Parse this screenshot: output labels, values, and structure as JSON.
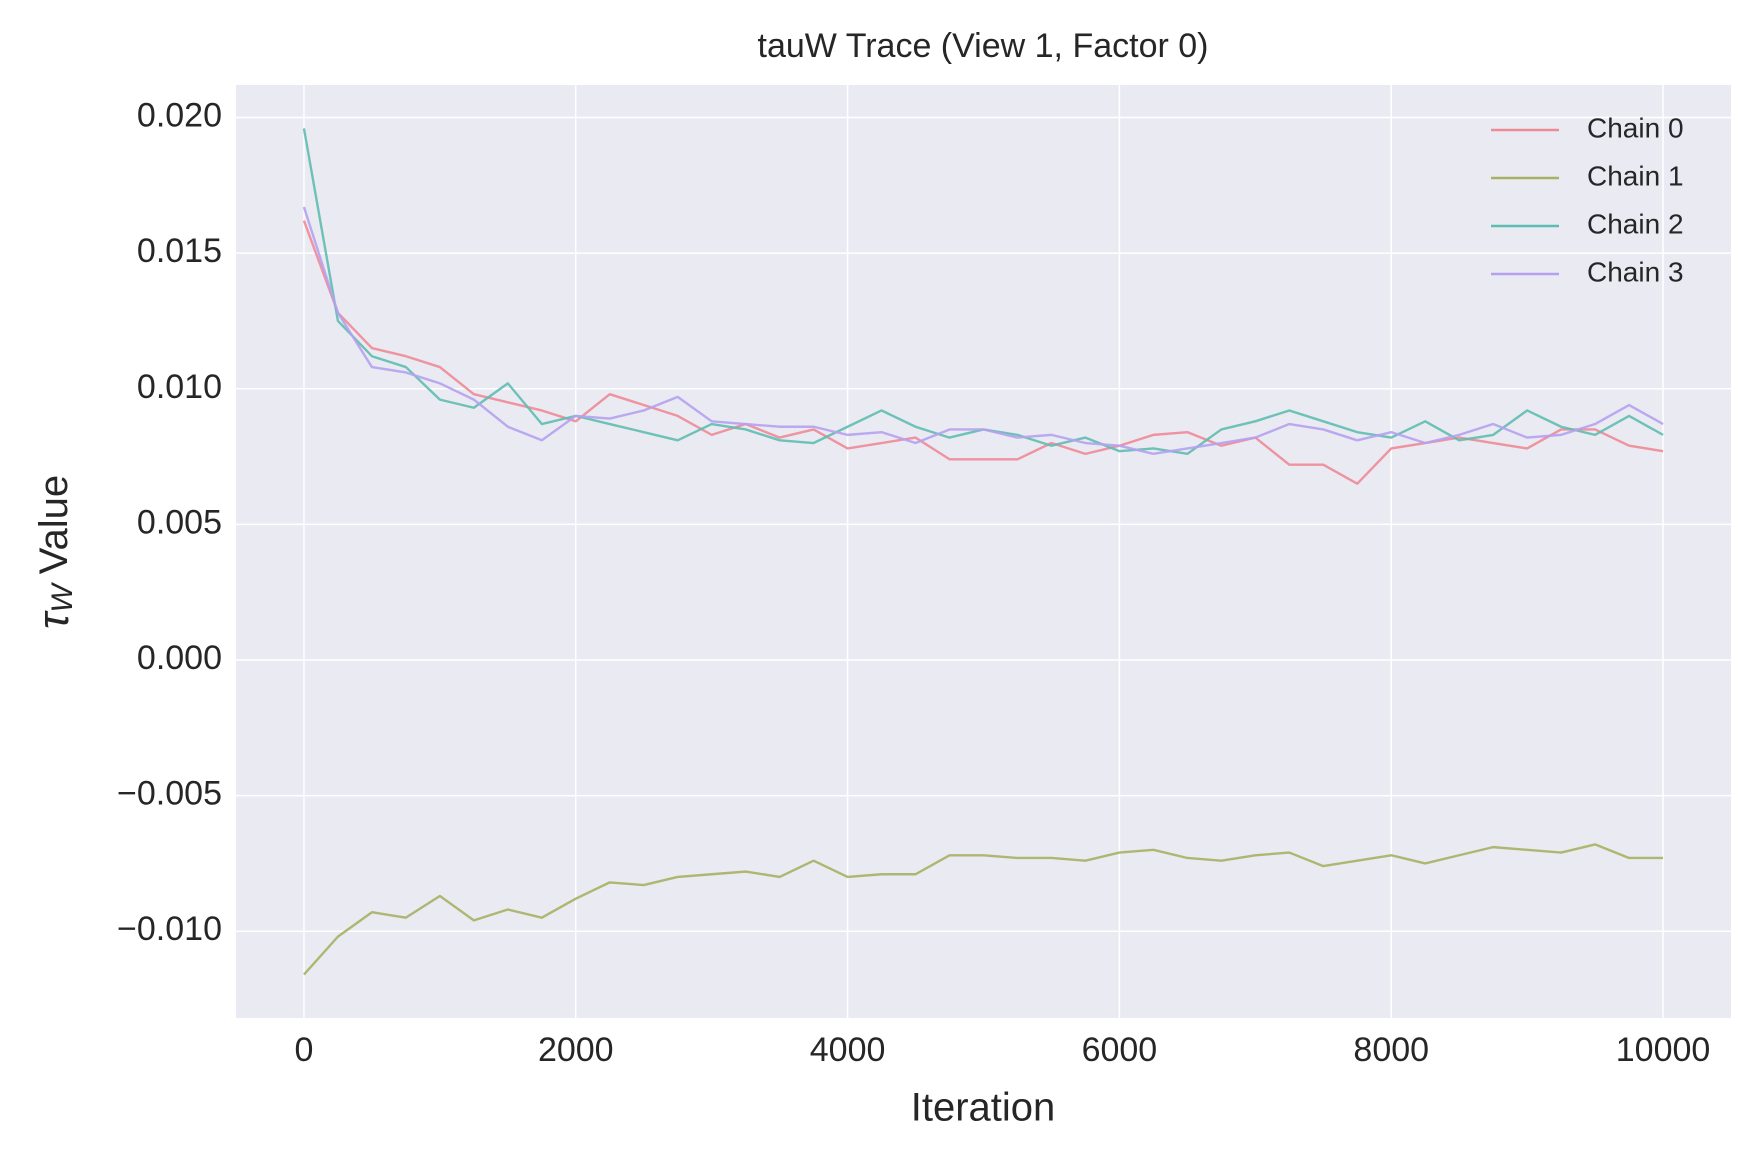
{
  "chart_data": {
    "type": "line",
    "title": "tauW Trace (View 1, Factor 0)",
    "xlabel": "Iteration",
    "ylabel": {
      "symbol": "τ",
      "subscript": "W",
      "text": "Value"
    },
    "x": [
      0,
      250,
      500,
      750,
      1000,
      1250,
      1500,
      1750,
      2000,
      2250,
      2500,
      2750,
      3000,
      3250,
      3500,
      3750,
      4000,
      4250,
      4500,
      4750,
      5000,
      5250,
      5500,
      5750,
      6000,
      6250,
      6500,
      6750,
      7000,
      7250,
      7500,
      7750,
      8000,
      8250,
      8500,
      8750,
      9000,
      9250,
      9500,
      9750,
      10000
    ],
    "series": [
      {
        "name": "Chain 0",
        "color": "#ee8a96",
        "values": [
          0.0162,
          0.0128,
          0.0115,
          0.0112,
          0.0108,
          0.0098,
          0.0095,
          0.0092,
          0.0088,
          0.0098,
          0.0094,
          0.009,
          0.0083,
          0.0087,
          0.0082,
          0.0085,
          0.0078,
          0.008,
          0.0082,
          0.0074,
          0.0074,
          0.0074,
          0.008,
          0.0076,
          0.0079,
          0.0083,
          0.0084,
          0.0079,
          0.0082,
          0.0072,
          0.0072,
          0.0065,
          0.0078,
          0.008,
          0.0082,
          0.008,
          0.0078,
          0.0085,
          0.0085,
          0.0079,
          0.0077
        ]
      },
      {
        "name": "Chain 1",
        "color": "#a8b063",
        "values": [
          -0.0116,
          -0.0102,
          -0.0093,
          -0.0095,
          -0.0087,
          -0.0096,
          -0.0092,
          -0.0095,
          -0.0088,
          -0.0082,
          -0.0083,
          -0.008,
          -0.0079,
          -0.0078,
          -0.008,
          -0.0074,
          -0.008,
          -0.0079,
          -0.0079,
          -0.0072,
          -0.0072,
          -0.0073,
          -0.0073,
          -0.0074,
          -0.0071,
          -0.007,
          -0.0073,
          -0.0074,
          -0.0072,
          -0.0071,
          -0.0076,
          -0.0074,
          -0.0072,
          -0.0075,
          -0.0072,
          -0.0069,
          -0.007,
          -0.0071,
          -0.0068,
          -0.0073,
          -0.0073
        ]
      },
      {
        "name": "Chain 2",
        "color": "#5fbcb0",
        "values": [
          0.0196,
          0.0125,
          0.0112,
          0.0108,
          0.0096,
          0.0093,
          0.0102,
          0.0087,
          0.009,
          0.0087,
          0.0084,
          0.0081,
          0.0087,
          0.0085,
          0.0081,
          0.008,
          0.0086,
          0.0092,
          0.0086,
          0.0082,
          0.0085,
          0.0083,
          0.0079,
          0.0082,
          0.0077,
          0.0078,
          0.0076,
          0.0085,
          0.0088,
          0.0092,
          0.0088,
          0.0084,
          0.0082,
          0.0088,
          0.0081,
          0.0083,
          0.0092,
          0.0086,
          0.0083,
          0.009,
          0.0083
        ]
      },
      {
        "name": "Chain 3",
        "color": "#b5a1ef",
        "values": [
          0.0167,
          0.0128,
          0.0108,
          0.0106,
          0.0102,
          0.0096,
          0.0086,
          0.0081,
          0.009,
          0.0089,
          0.0092,
          0.0097,
          0.0088,
          0.0087,
          0.0086,
          0.0086,
          0.0083,
          0.0084,
          0.008,
          0.0085,
          0.0085,
          0.0082,
          0.0083,
          0.008,
          0.0079,
          0.0076,
          0.0078,
          0.008,
          0.0082,
          0.0087,
          0.0085,
          0.0081,
          0.0084,
          0.008,
          0.0083,
          0.0087,
          0.0082,
          0.0083,
          0.0087,
          0.0094,
          0.0087
        ]
      }
    ],
    "xlim": [
      -500,
      10500
    ],
    "xticks": [
      0,
      2000,
      4000,
      6000,
      8000,
      10000
    ],
    "ylim": [
      -0.0132,
      0.0212
    ],
    "yticks": [
      {
        "value": -0.01,
        "label": "−0.010"
      },
      {
        "value": -0.005,
        "label": "−0.005"
      },
      {
        "value": 0,
        "label": "0.000"
      },
      {
        "value": 0.005,
        "label": "0.005"
      },
      {
        "value": 0.01,
        "label": "0.010"
      },
      {
        "value": 0.015,
        "label": "0.015"
      },
      {
        "value": 0.02,
        "label": "0.020"
      }
    ],
    "grid": true,
    "legend": "upper right",
    "background": "#eaeaf2"
  }
}
